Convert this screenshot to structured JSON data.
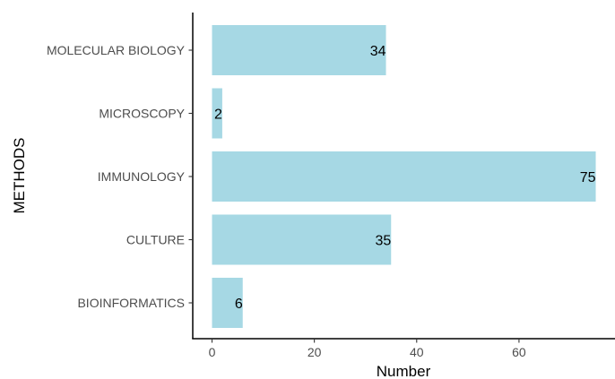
{
  "chart_data": {
    "type": "bar",
    "orientation": "horizontal",
    "categories": [
      "MOLECULAR BIOLOGY",
      "MICROSCOPY",
      "IMMUNOLOGY",
      "CULTURE",
      "BIOINFORMATICS"
    ],
    "values": [
      34,
      2,
      75,
      35,
      6
    ],
    "data_labels": [
      "34",
      "2",
      "75",
      "35",
      "6"
    ],
    "xlabel": "Number",
    "ylabel": "METHODS",
    "xlim": [
      0,
      78
    ],
    "x_ticks": [
      0,
      20,
      40,
      60
    ],
    "x_tick_labels": [
      "0",
      "20",
      "40",
      "60"
    ],
    "grid": false,
    "legend": "none",
    "bar_color": "#a6d8e4",
    "axis_color": "#000000",
    "tick_label_color": "#4d4d4d"
  }
}
